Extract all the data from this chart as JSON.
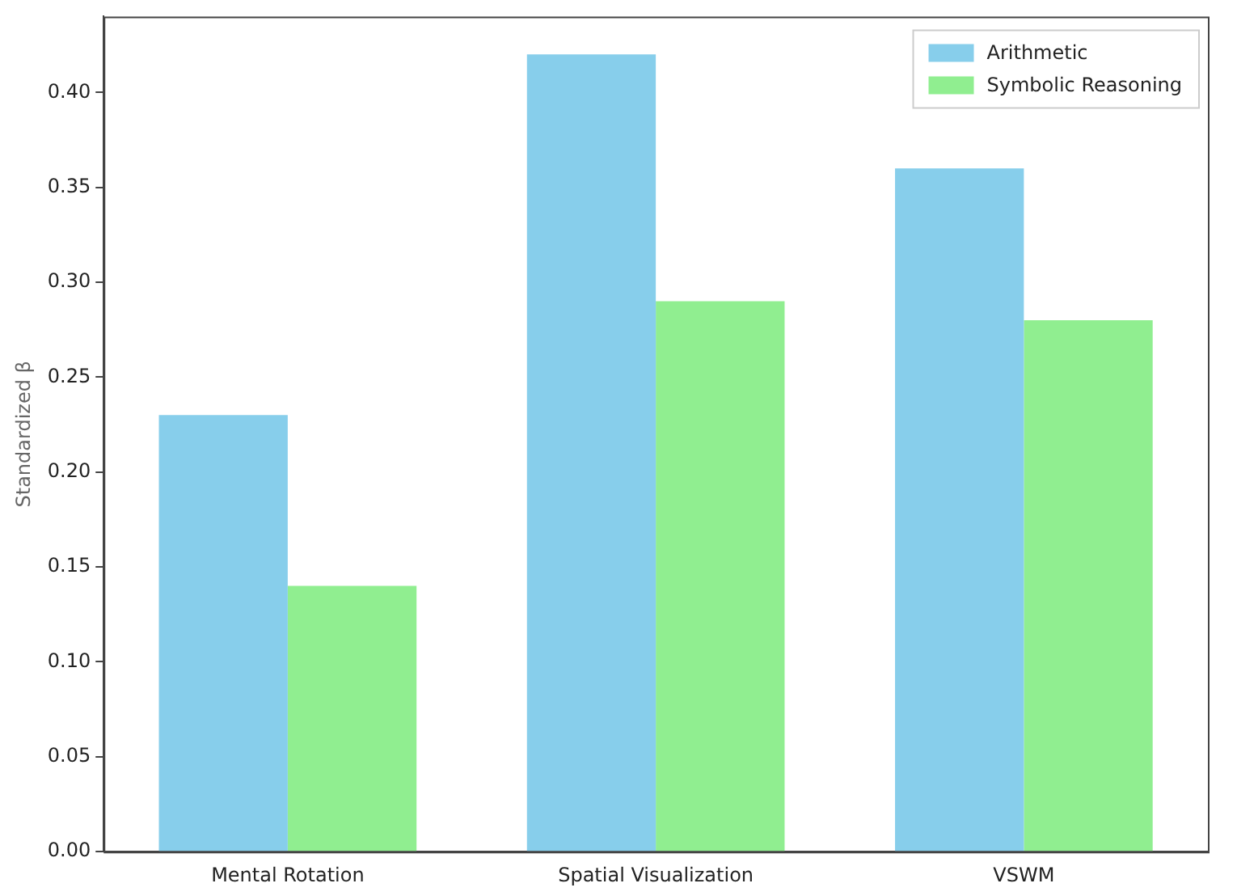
{
  "chart_data": {
    "type": "bar",
    "ylabel": "Standardized β",
    "categories": [
      "Mental Rotation",
      "Spatial Visualization",
      "VSWM"
    ],
    "series": [
      {
        "name": "Arithmetic",
        "color": "#87ceeb",
        "values": [
          0.23,
          0.42,
          0.36
        ]
      },
      {
        "name": "Symbolic Reasoning",
        "color": "#90ee90",
        "values": [
          0.14,
          0.29,
          0.28
        ]
      }
    ],
    "ylim": [
      0,
      0.44
    ],
    "yticks": [
      {
        "value": 0,
        "label": "0.00"
      },
      {
        "value": 0.05,
        "label": "0.05"
      },
      {
        "value": 0.1,
        "label": "0.10"
      },
      {
        "value": 0.15,
        "label": "0.15"
      },
      {
        "value": 0.2,
        "label": "0.20"
      },
      {
        "value": 0.25,
        "label": "0.25"
      },
      {
        "value": 0.3,
        "label": "0.30"
      },
      {
        "value": 0.35,
        "label": "0.35"
      },
      {
        "value": 0.4,
        "label": "0.40"
      }
    ],
    "grid": false,
    "legend": "top right"
  }
}
